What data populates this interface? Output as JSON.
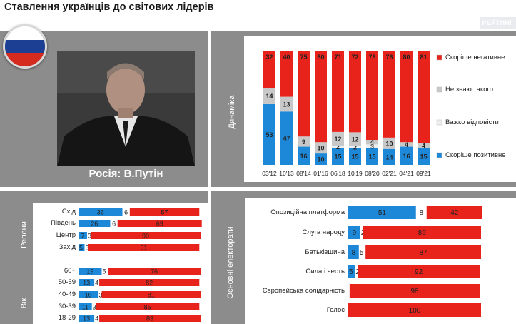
{
  "header": {
    "title": "Ставлення українців до світових лідерів",
    "brand": "РЕЙТИНГ"
  },
  "leader": {
    "caption": "Росія: В.Путін"
  },
  "colors": {
    "negative": "#e8231c",
    "dont_know": "#c8c8c8",
    "hard_to_say": "#eeeeee",
    "positive": "#1e88d8",
    "panel": "#8c8c8c"
  },
  "side_labels": {
    "dynamics": "Динаміка",
    "regions": "Регіони",
    "age": "Вік",
    "electorates": "Основні електорати"
  },
  "chart_data": [
    {
      "id": "dynamics",
      "type": "bar",
      "stacked": true,
      "orientation": "vertical",
      "categories": [
        "03'12",
        "10'13",
        "08'14",
        "01'16",
        "06'18",
        "10'19",
        "08'20",
        "02'21",
        "04'21",
        "09'21"
      ],
      "series": [
        {
          "name": "Скоріше позитивне",
          "color": "#1e88d8",
          "values": [
            53,
            47,
            16,
            10,
            15,
            15,
            15,
            14,
            16,
            15
          ]
        },
        {
          "name": "Важко відповісти",
          "color": "#eeeeee",
          "values": [
            0,
            0,
            0,
            0,
            2,
            2,
            3,
            0,
            0,
            0
          ]
        },
        {
          "name": "Не знаю такого",
          "color": "#c8c8c8",
          "values": [
            14,
            13,
            9,
            10,
            12,
            12,
            4,
            10,
            4,
            4
          ]
        },
        {
          "name": "Скоріше негативне",
          "color": "#e8231c",
          "values": [
            32,
            40,
            75,
            80,
            71,
            72,
            78,
            76,
            80,
            81
          ]
        }
      ],
      "legend": [
        "Скоріше негативне",
        "Не знаю такого",
        "Важко відповісти",
        "Скоріше позитивне"
      ]
    },
    {
      "id": "regions",
      "type": "bar",
      "stacked": true,
      "orientation": "horizontal",
      "categories": [
        "Схід",
        "Південь",
        "Центр",
        "Захід"
      ],
      "series": [
        {
          "name": "Скоріше позитивне",
          "values": [
            36,
            26,
            7,
            5
          ]
        },
        {
          "name": "Не знаю такого",
          "values": [
            6,
            6,
            3,
            3
          ]
        },
        {
          "name": "Скоріше негативне",
          "values": [
            57,
            69,
            90,
            91
          ]
        }
      ]
    },
    {
      "id": "age",
      "type": "bar",
      "stacked": true,
      "orientation": "horizontal",
      "categories": [
        "60+",
        "50-59",
        "40-49",
        "30-39",
        "18-29"
      ],
      "series": [
        {
          "name": "Скоріше позитивне",
          "values": [
            19,
            13,
            16,
            11,
            13
          ]
        },
        {
          "name": "Не знаю такого",
          "values": [
            5,
            4,
            3,
            3,
            4
          ]
        },
        {
          "name": "Скоріше негативне",
          "values": [
            76,
            82,
            81,
            85,
            83
          ]
        }
      ]
    },
    {
      "id": "electorates",
      "type": "bar",
      "stacked": true,
      "orientation": "horizontal",
      "categories": [
        "Опозиційна платформа",
        "Слуга народу",
        "Батьківщина",
        "Сила і честь",
        "Європейська солідарність",
        "Голос"
      ],
      "series": [
        {
          "name": "Скоріше позитивне",
          "values": [
            51,
            9,
            8,
            5,
            0,
            0
          ]
        },
        {
          "name": "Не знаю такого",
          "values": [
            8,
            2,
            5,
            2,
            1,
            0
          ]
        },
        {
          "name": "Скоріше негативне",
          "values": [
            42,
            89,
            87,
            92,
            98,
            100
          ]
        }
      ]
    }
  ]
}
